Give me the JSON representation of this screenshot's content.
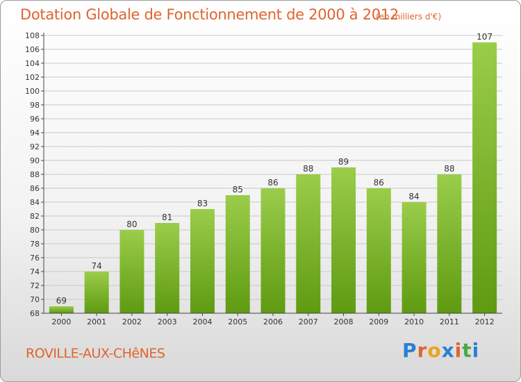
{
  "header": {
    "title": "Dotation Globale de Fonctionnement de 2000 à 2012",
    "unit": "(en milliers d'€)"
  },
  "footer": {
    "commune": "ROVILLE-AUX-CHêNES",
    "logo": "Proxiti"
  },
  "colors": {
    "title": "#e0642e",
    "bar_top": "#9acd4a",
    "bar_bottom": "#5f9a12",
    "grid": "#c8c8c8",
    "logo_letters": [
      "#2a7fd6",
      "#e0642e",
      "#f0a020",
      "#2a7fd6",
      "#e0642e",
      "#4aa84a",
      "#2a7fd6"
    ]
  },
  "chart_data": {
    "type": "bar",
    "title": "Dotation Globale de Fonctionnement de 2000 à 2012",
    "subtitle": "(en milliers d'€)",
    "categories": [
      "2000",
      "2001",
      "2002",
      "2003",
      "2004",
      "2005",
      "2006",
      "2007",
      "2008",
      "2009",
      "2010",
      "2011",
      "2012"
    ],
    "values": [
      69,
      74,
      80,
      81,
      83,
      85,
      86,
      88,
      89,
      86,
      84,
      88,
      107
    ],
    "ylim": [
      68,
      108
    ],
    "ytick_step": 2,
    "grid": true
  }
}
